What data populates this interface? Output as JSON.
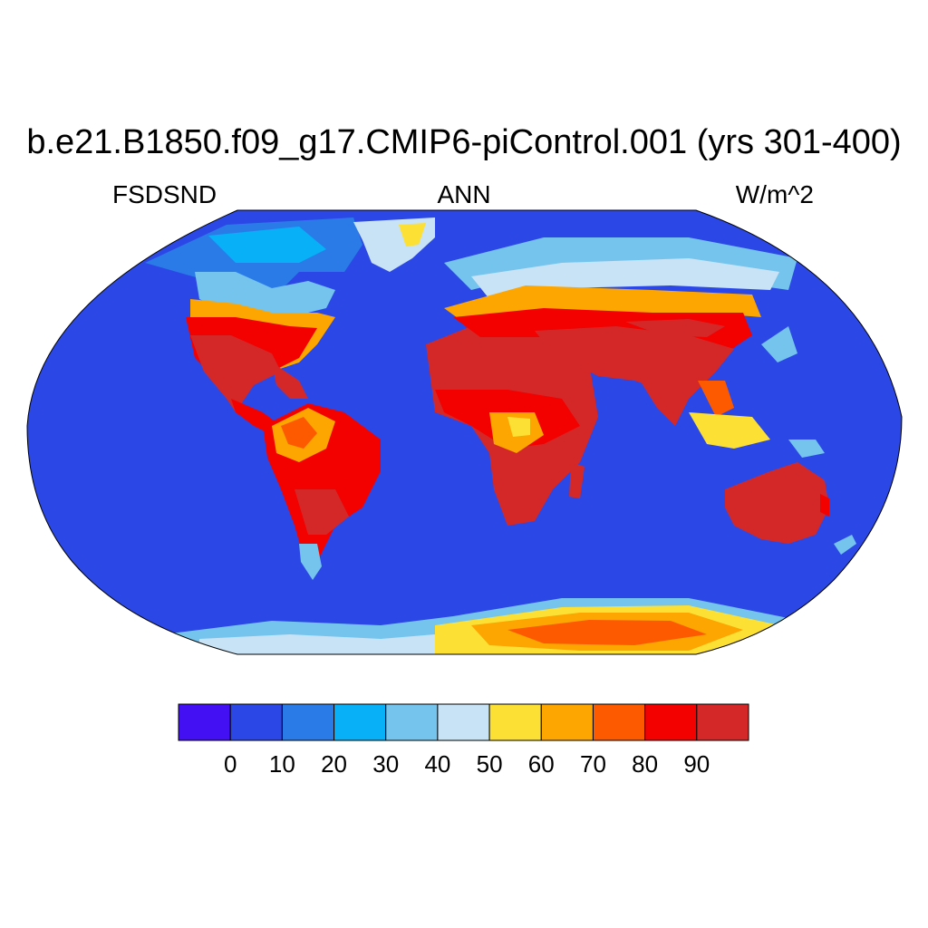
{
  "title": "b.e21.B1850.f09_g17.CMIP6-piControl.001 (yrs 301-400)",
  "left_label": "FSDSND",
  "center_label": "ANN",
  "right_label": "W/m^2",
  "colorbar": {
    "levels": [
      "0",
      "10",
      "20",
      "30",
      "40",
      "50",
      "60",
      "70",
      "80",
      "90"
    ],
    "colors": [
      "#4210f2",
      "#2b48e6",
      "#2a7be8",
      "#07b0f7",
      "#74c4ee",
      "#c8e3f5",
      "#fde034",
      "#fda500",
      "#fd5a00",
      "#f30000",
      "#d42828"
    ]
  },
  "map": {
    "projection": "robinson",
    "ocean_color": "#2b48e6",
    "regions": [
      {
        "name": "north-america-arctic",
        "value_class": "20-40"
      },
      {
        "name": "north-america-temperate",
        "value_class": "50-80"
      },
      {
        "name": "north-america-south",
        "value_class": "90+"
      },
      {
        "name": "greenland",
        "value_class": "40-60"
      },
      {
        "name": "south-america",
        "value_class": "70-90+"
      },
      {
        "name": "europe-northern",
        "value_class": "20-50"
      },
      {
        "name": "eurasia-mid",
        "value_class": "50-80"
      },
      {
        "name": "asia-south",
        "value_class": "90+"
      },
      {
        "name": "africa",
        "value_class": "80-90+"
      },
      {
        "name": "australia",
        "value_class": "90+"
      },
      {
        "name": "antarctica-west",
        "value_class": "30-50"
      },
      {
        "name": "antarctica-east",
        "value_class": "60-80"
      }
    ]
  }
}
